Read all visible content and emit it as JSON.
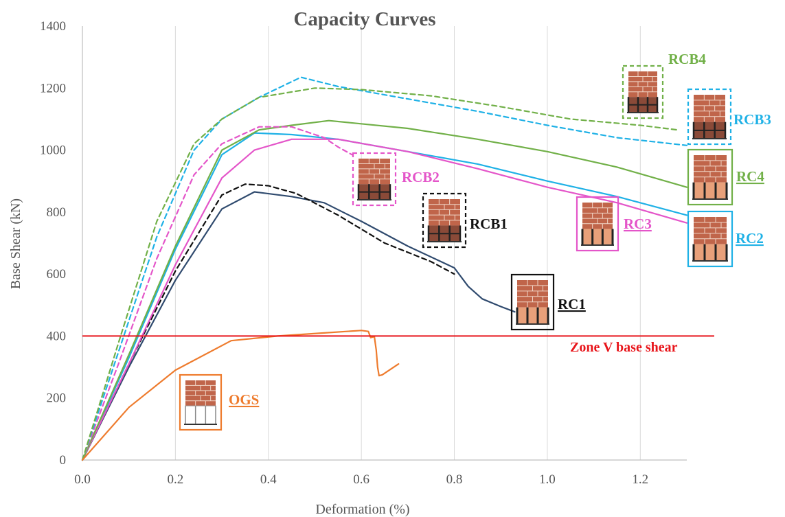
{
  "chart_data": {
    "type": "line",
    "title": "Capacity Curves",
    "xlabel": "Deformation (%)",
    "ylabel": "Base Shear (kN)",
    "xlim": [
      0,
      1.3
    ],
    "ylim": [
      0,
      1400
    ],
    "xticks": [
      "0.0",
      "0.2",
      "0.4",
      "0.6",
      "0.8",
      "1.0",
      "1.2"
    ],
    "yticks": [
      "0",
      "200",
      "400",
      "600",
      "800",
      "1000",
      "1200",
      "1400"
    ],
    "grid": "vertical",
    "reference_line": {
      "label": "Zone V base shear",
      "y": 400,
      "color": "#e8151b"
    },
    "series": [
      {
        "name": "RC1",
        "color": "#2f4a6e",
        "dash": false,
        "x": [
          0,
          0.1,
          0.2,
          0.3,
          0.37,
          0.45,
          0.52,
          0.6,
          0.7,
          0.8,
          0.83,
          0.86,
          0.9,
          0.93
        ],
        "y": [
          0,
          300,
          580,
          810,
          865,
          850,
          830,
          770,
          690,
          620,
          560,
          520,
          495,
          478
        ]
      },
      {
        "name": "RCB1",
        "color": "#111111",
        "dash": true,
        "x": [
          0,
          0.1,
          0.2,
          0.3,
          0.35,
          0.4,
          0.46,
          0.55,
          0.65,
          0.75,
          0.8
        ],
        "y": [
          0,
          310,
          610,
          855,
          890,
          885,
          860,
          790,
          700,
          640,
          600
        ]
      },
      {
        "name": "RC2",
        "color": "#1fb1e6",
        "dash": false,
        "x": [
          0,
          0.1,
          0.2,
          0.3,
          0.37,
          0.45,
          0.55,
          0.7,
          0.85,
          1.0,
          1.15,
          1.3
        ],
        "y": [
          0,
          330,
          680,
          985,
          1055,
          1050,
          1035,
          995,
          955,
          900,
          850,
          790
        ]
      },
      {
        "name": "RC3",
        "color": "#e455c9",
        "dash": false,
        "x": [
          0,
          0.1,
          0.2,
          0.3,
          0.37,
          0.45,
          0.55,
          0.7,
          0.85,
          1.0,
          1.15,
          1.3
        ],
        "y": [
          0,
          310,
          630,
          910,
          1000,
          1035,
          1035,
          995,
          940,
          880,
          830,
          765
        ]
      },
      {
        "name": "RC4",
        "color": "#71b048",
        "dash": false,
        "x": [
          0,
          0.1,
          0.2,
          0.3,
          0.38,
          0.45,
          0.53,
          0.7,
          0.85,
          1.0,
          1.15,
          1.3
        ],
        "y": [
          0,
          340,
          690,
          1000,
          1065,
          1080,
          1095,
          1070,
          1035,
          995,
          945,
          880
        ]
      },
      {
        "name": "RCB2",
        "color": "#e455c9",
        "dash": true,
        "x": [
          0,
          0.08,
          0.16,
          0.24,
          0.3,
          0.38,
          0.45,
          0.52,
          0.55,
          0.58
        ],
        "y": [
          0,
          320,
          650,
          920,
          1020,
          1075,
          1075,
          1040,
          1010,
          985
        ]
      },
      {
        "name": "RCB3",
        "color": "#1fb1e6",
        "dash": true,
        "x": [
          0,
          0.08,
          0.16,
          0.24,
          0.3,
          0.38,
          0.47,
          0.55,
          0.7,
          0.85,
          1.0,
          1.15,
          1.3
        ],
        "y": [
          0,
          360,
          720,
          1000,
          1100,
          1170,
          1235,
          1205,
          1165,
          1125,
          1080,
          1040,
          1015
        ]
      },
      {
        "name": "RCB4",
        "color": "#71b048",
        "dash": true,
        "x": [
          0,
          0.08,
          0.16,
          0.24,
          0.3,
          0.38,
          0.5,
          0.6,
          0.75,
          0.9,
          1.05,
          1.2,
          1.28
        ],
        "y": [
          0,
          390,
          770,
          1020,
          1100,
          1170,
          1200,
          1195,
          1175,
          1140,
          1100,
          1080,
          1065
        ]
      },
      {
        "name": "OGS",
        "color": "#ee7b2d",
        "dash": false,
        "x": [
          0,
          0.1,
          0.2,
          0.32,
          0.42,
          0.52,
          0.6,
          0.615,
          0.62,
          0.628,
          0.632,
          0.635,
          0.638,
          0.645,
          0.68
        ],
        "y": [
          0,
          170,
          290,
          385,
          400,
          410,
          418,
          415,
          395,
          398,
          355,
          300,
          272,
          275,
          310
        ]
      }
    ]
  },
  "labels": {
    "rcb4": "RCB4",
    "rcb3": "RCB3",
    "rc4": "RC4",
    "rcb2": "RCB2",
    "rcb1": "RCB1",
    "rc3": "RC3",
    "rc2": "RC2",
    "rc1": "RC1",
    "ogs": "OGS",
    "zone": "Zone V base shear"
  },
  "building_icons": [
    {
      "name": "building-icon-rcb4",
      "series": "RCB4",
      "frame": "dashed",
      "color": "#71b048",
      "infill": "braced"
    },
    {
      "name": "building-icon-rcb3",
      "series": "RCB3",
      "frame": "dashed",
      "color": "#1fb1e6",
      "infill": "braced"
    },
    {
      "name": "building-icon-rc4",
      "series": "RC4",
      "frame": "solid",
      "color": "#71b048",
      "infill": "columns"
    },
    {
      "name": "building-icon-rcb2",
      "series": "RCB2",
      "frame": "dashed",
      "color": "#e455c9",
      "infill": "braced"
    },
    {
      "name": "building-icon-rcb1",
      "series": "RCB1",
      "frame": "dashed",
      "color": "#111111",
      "infill": "braced"
    },
    {
      "name": "building-icon-rc3",
      "series": "RC3",
      "frame": "solid",
      "color": "#e455c9",
      "infill": "columns"
    },
    {
      "name": "building-icon-rc2",
      "series": "RC2",
      "frame": "solid",
      "color": "#1fb1e6",
      "infill": "columns"
    },
    {
      "name": "building-icon-rc1",
      "series": "RC1",
      "frame": "solid",
      "color": "#111111",
      "infill": "columns"
    },
    {
      "name": "building-icon-ogs",
      "series": "OGS",
      "frame": "solid",
      "color": "#ee7b2d",
      "infill": "open"
    }
  ]
}
